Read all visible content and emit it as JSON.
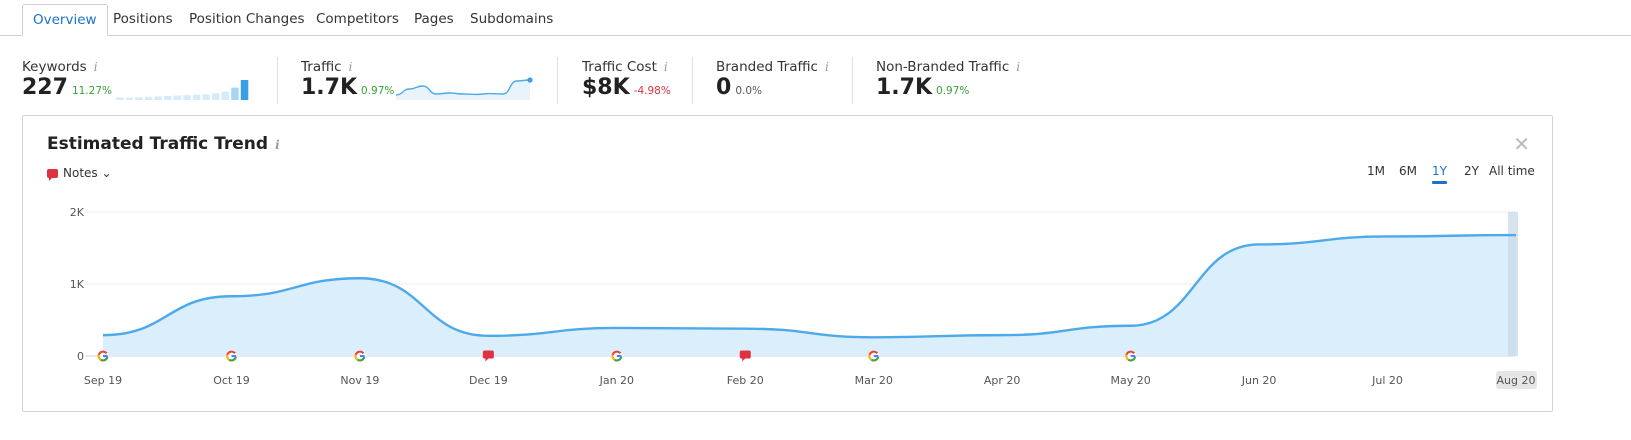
{
  "tabs": [
    {
      "label": "Overview"
    },
    {
      "label": "Positions"
    },
    {
      "label": "Position Changes"
    },
    {
      "label": "Competitors"
    },
    {
      "label": "Pages"
    },
    {
      "label": "Subdomains"
    }
  ],
  "active_tab": "Overview",
  "metrics": {
    "keywords": {
      "label": "Keywords",
      "value": "227",
      "delta": "11.27%"
    },
    "traffic": {
      "label": "Traffic",
      "value": "1.7K",
      "delta": "0.97%"
    },
    "traffic_cost": {
      "label": "Traffic Cost",
      "value": "$8K",
      "delta": "-4.98%"
    },
    "branded": {
      "label": "Branded Traffic",
      "value": "0",
      "delta": "0.0%"
    },
    "non_branded": {
      "label": "Non-Branded Traffic",
      "value": "1.7K",
      "delta": "0.97%"
    }
  },
  "info_glyph": "i",
  "keywords_sparkbars": [
    0.12,
    0.12,
    0.14,
    0.16,
    0.18,
    0.2,
    0.22,
    0.24,
    0.26,
    0.28,
    0.34,
    0.42,
    0.62,
    1.0
  ],
  "traffic_sparkline": [
    0.25,
    0.55,
    0.7,
    0.3,
    0.35,
    0.3,
    0.28,
    0.32,
    0.3,
    0.95,
    1.0
  ],
  "panel": {
    "title": "Estimated Traffic Trend",
    "close_glyph": "✕",
    "notes_label": "Notes",
    "notes_caret": "⌄",
    "ranges": [
      "1M",
      "6M",
      "1Y",
      "2Y",
      "All time"
    ],
    "active_range": "1Y"
  },
  "colors": {
    "accent": "#1a73c9",
    "line": "#4daaea",
    "area": "#dbeefb",
    "positive": "#37a335",
    "negative": "#e0313f"
  },
  "chart_data": {
    "type": "area",
    "title": "Estimated Traffic Trend",
    "x": [
      "Sep 19",
      "Oct 19",
      "Nov 19",
      "Dec 19",
      "Jan 20",
      "Feb 20",
      "Mar 20",
      "Apr 20",
      "May 20",
      "Jun 20",
      "Jul 20",
      "Aug 20"
    ],
    "y": [
      290,
      830,
      1080,
      280,
      390,
      380,
      260,
      290,
      420,
      1550,
      1660,
      1680
    ],
    "yticks": [
      "0",
      "1K",
      "2K"
    ],
    "ylim": [
      0,
      2000
    ],
    "grid": true,
    "highlighted_x": "Aug 20",
    "markers": [
      {
        "x": "Sep 19",
        "type": "google"
      },
      {
        "x": "Oct 19",
        "type": "google"
      },
      {
        "x": "Nov 19",
        "type": "google"
      },
      {
        "x": "Dec 19",
        "type": "note"
      },
      {
        "x": "Jan 20",
        "type": "google"
      },
      {
        "x": "Feb 20",
        "type": "note"
      },
      {
        "x": "Mar 20",
        "type": "google"
      },
      {
        "x": "May 20",
        "type": "google"
      }
    ]
  }
}
